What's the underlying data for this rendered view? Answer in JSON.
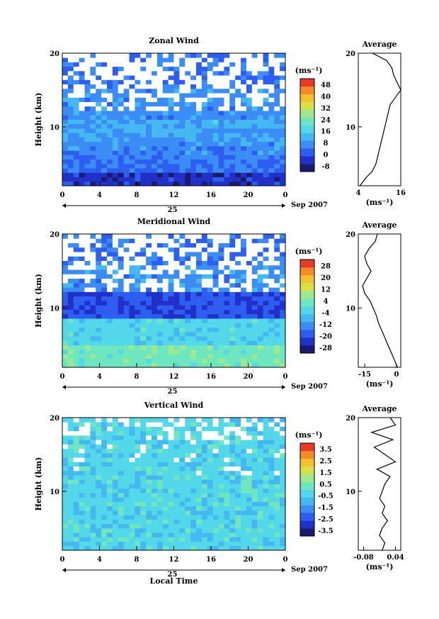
{
  "chart_data": [
    {
      "type": "heatmap",
      "title": "Zonal Wind",
      "ylabel": "Height (km)",
      "ylim": [
        2,
        20
      ],
      "xlim": [
        0,
        24
      ],
      "x_ticks": [
        "0",
        "4",
        "8",
        "12",
        "16",
        "20",
        "0"
      ],
      "y_ticks": [
        "10",
        "20"
      ],
      "date_day": "25",
      "date_label": "Sep 2007",
      "colorbar_unit": "(ms⁻¹)",
      "colorbar_ticks": [
        "-8",
        "0",
        "8",
        "16",
        "24",
        "32",
        "40",
        "48"
      ],
      "colorbar_range": [
        -12,
        52
      ],
      "profile": {
        "title": "Average",
        "unit": "(ms⁻¹)",
        "x_ticks": [
          "4",
          "16"
        ],
        "xlim": [
          4,
          16
        ],
        "y_ticks": [
          "10",
          "20"
        ],
        "heights": [
          2,
          3,
          4,
          5,
          6,
          7,
          8,
          9,
          10,
          11,
          12,
          13,
          14,
          15,
          16,
          17,
          18,
          19,
          20
        ],
        "values": [
          4.5,
          6,
          8,
          9,
          9.5,
          10,
          10.5,
          11,
          11.5,
          12,
          12.5,
          13,
          14.5,
          16,
          15,
          14,
          13.5,
          12,
          8
        ]
      }
    },
    {
      "type": "heatmap",
      "title": "Meridional Wind",
      "ylabel": "Height (km)",
      "ylim": [
        2,
        20
      ],
      "xlim": [
        0,
        24
      ],
      "x_ticks": [
        "0",
        "4",
        "8",
        "12",
        "16",
        "20",
        "0"
      ],
      "y_ticks": [
        "10",
        "20"
      ],
      "date_day": "25",
      "date_label": "Sep 2007",
      "colorbar_unit": "(ms⁻¹)",
      "colorbar_ticks": [
        "-28",
        "-20",
        "-12",
        "-4",
        "4",
        "12",
        "20",
        "28"
      ],
      "colorbar_range": [
        -32,
        32
      ],
      "profile": {
        "title": "Average",
        "unit": "(ms⁻¹)",
        "x_ticks": [
          "-15",
          "0"
        ],
        "xlim": [
          -18,
          2
        ],
        "y_ticks": [
          "10",
          "20"
        ],
        "heights": [
          2,
          3,
          4,
          5,
          6,
          7,
          8,
          9,
          10,
          11,
          12,
          13,
          14,
          15,
          16,
          17,
          18,
          19,
          20
        ],
        "values": [
          0.5,
          -1,
          -2.5,
          -4,
          -5.5,
          -7,
          -8.5,
          -9.5,
          -11,
          -12.5,
          -15,
          -16,
          -14,
          -12,
          -14,
          -15,
          -13,
          -10,
          -9
        ]
      }
    },
    {
      "type": "heatmap",
      "title": "Vertical Wind",
      "ylabel": "Height (km)",
      "xlabel": "Local Time",
      "ylim": [
        2,
        20
      ],
      "xlim": [
        0,
        24
      ],
      "x_ticks": [
        "0",
        "4",
        "8",
        "12",
        "16",
        "20",
        "0"
      ],
      "y_ticks": [
        "10",
        "20"
      ],
      "date_day": "25",
      "date_label": "Sep 2007",
      "colorbar_unit": "(ms⁻¹)",
      "colorbar_ticks": [
        "-3.5",
        "-2.5",
        "-1.5",
        "-0.5",
        "0.5",
        "1.5",
        "2.5",
        "3.5"
      ],
      "colorbar_range": [
        -4,
        4
      ],
      "profile": {
        "title": "Average",
        "unit": "(ms⁻¹)",
        "x_ticks": [
          "-0.08",
          "0.04"
        ],
        "xlim": [
          -0.1,
          0.06
        ],
        "y_ticks": [
          "10",
          "20"
        ],
        "heights": [
          2,
          3,
          4,
          5,
          6,
          7,
          8,
          9,
          10,
          11,
          12,
          13,
          14,
          15,
          16,
          17,
          18,
          19,
          20
        ],
        "values": [
          -0.01,
          0.0,
          -0.02,
          -0.01,
          0.01,
          -0.01,
          0.0,
          -0.02,
          -0.01,
          0.0,
          0.02,
          -0.03,
          0.04,
          0.0,
          -0.04,
          0.03,
          -0.05,
          0.04,
          0.02
        ]
      }
    }
  ]
}
